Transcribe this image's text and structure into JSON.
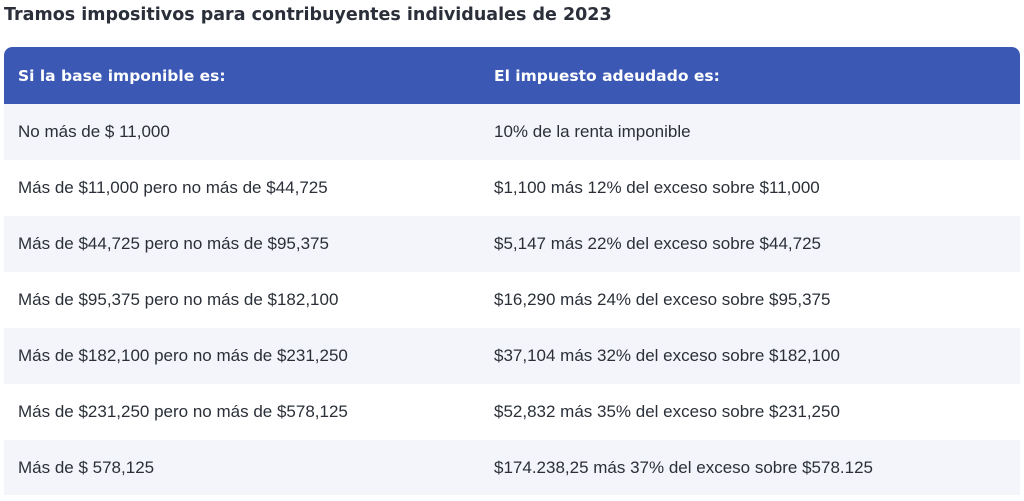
{
  "title": "Tramos impositivos para contribuyentes individuales de 2023",
  "table": {
    "headers": [
      "Si la base imponible es:",
      "El impuesto adeudado es:"
    ],
    "rows": [
      [
        "No más de $ 11,000",
        "10% de la renta imponible"
      ],
      [
        "Más de $11,000 pero no más de $44,725",
        "$1,100 más 12% del exceso sobre $11,000"
      ],
      [
        "Más de $44,725 pero no más de $95,375",
        "$5,147 más 22% del exceso sobre $44,725"
      ],
      [
        "Más de $95,375 pero no más de $182,100",
        "$16,290 más 24% del exceso sobre $95,375"
      ],
      [
        "Más de $182,100 pero no más de $231,250",
        "$37,104 más 32% del exceso sobre $182,100"
      ],
      [
        "Más de $231,250 pero no más de $578,125",
        "$52,832 más 35% del exceso sobre $231,250"
      ],
      [
        "Más de $ 578,125",
        "$174.238,25 más 37% del exceso sobre $578.125"
      ]
    ]
  },
  "colors": {
    "header_background": "#3b58b5",
    "row_stripe": "#f4f5fa"
  }
}
